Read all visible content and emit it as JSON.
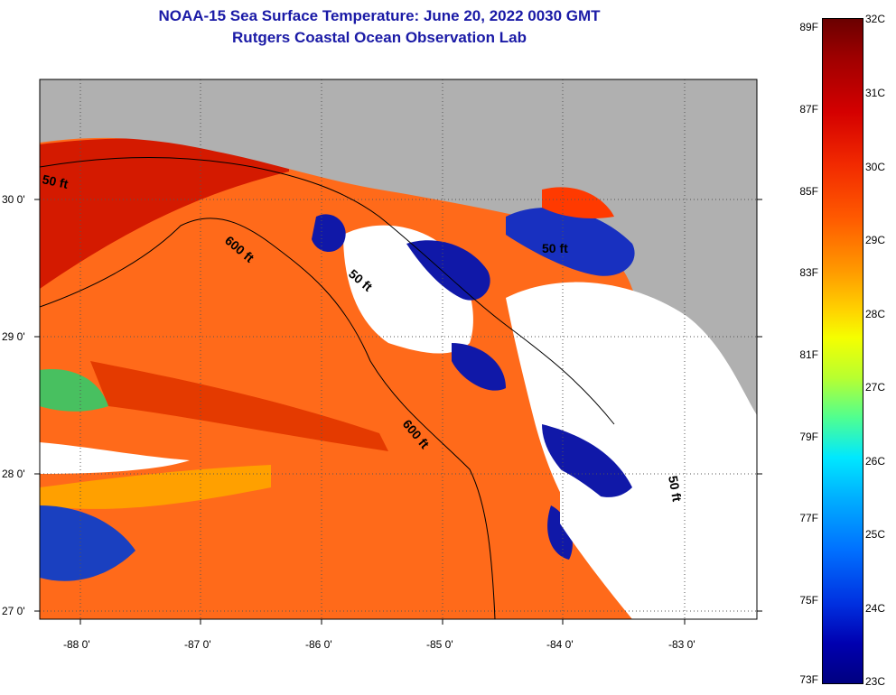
{
  "title": {
    "line1": "NOAA-15 Sea Surface Temperature:  June 20, 2022 0030 GMT",
    "line2": "Rutgers Coastal Ocean Observation Lab"
  },
  "colors": {
    "land": "#b0b0b0",
    "cloud": "#ffffff",
    "warm": "#ff6a1a",
    "cool": "#1018a8"
  },
  "axes": {
    "x_ticks": [
      "-88 0'",
      "-87 0'",
      "-86 0'",
      "-85 0'",
      "-84 0'",
      "-83 0'"
    ],
    "y_ticks": [
      "30 0'",
      "29 0'",
      "28 0'",
      "27 0'"
    ]
  },
  "contours": {
    "fifty_ft": "50 ft",
    "six_hundred_ft": "600 ft"
  },
  "colorbar": {
    "fahrenheit": [
      "89F",
      "87F",
      "85F",
      "83F",
      "81F",
      "79F",
      "77F",
      "75F",
      "73F"
    ],
    "celsius": [
      "32C",
      "31C",
      "30C",
      "29C",
      "28C",
      "27C",
      "26C",
      "25C",
      "24C",
      "23C"
    ],
    "range_celsius": [
      23,
      32
    ],
    "range_fahrenheit": [
      73,
      89
    ]
  }
}
